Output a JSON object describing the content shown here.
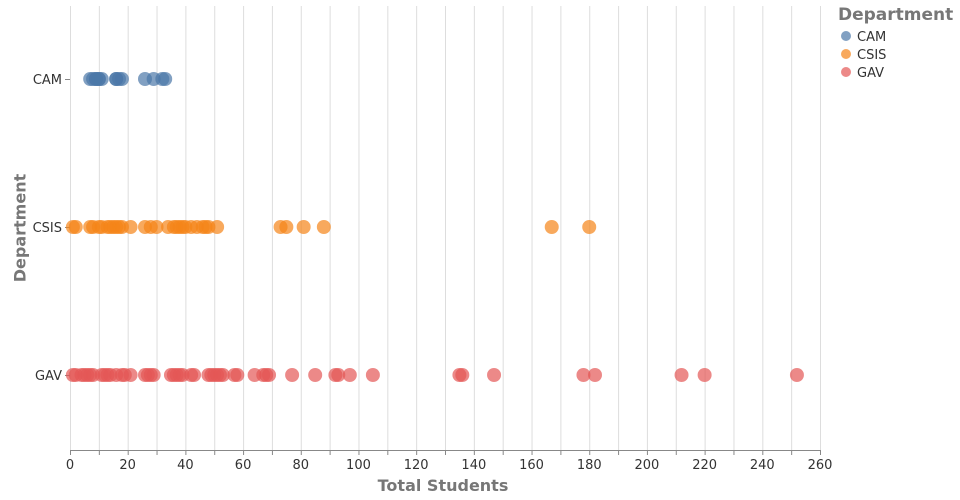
{
  "chart_data": {
    "type": "scatter",
    "xlabel": "Total Students",
    "ylabel": "Department",
    "xlim": [
      0,
      260
    ],
    "x_ticks": [
      0,
      20,
      40,
      60,
      80,
      100,
      120,
      140,
      160,
      180,
      200,
      220,
      240,
      260
    ],
    "categories": [
      "CAM",
      "CSIS",
      "GAV"
    ],
    "grid": true,
    "legend": {
      "title": "Department",
      "position": "top-right"
    },
    "series": [
      {
        "name": "CAM",
        "color": "#4c78a8",
        "x": [
          7,
          8,
          9,
          9,
          10,
          10,
          11,
          16,
          16,
          17,
          18,
          26,
          29,
          32,
          33
        ]
      },
      {
        "name": "CSIS",
        "color": "#f58518",
        "x": [
          1,
          2,
          7,
          8,
          10,
          11,
          13,
          14,
          15,
          16,
          17,
          18,
          21,
          26,
          28,
          30,
          34,
          36,
          37,
          38,
          39,
          40,
          42,
          44,
          46,
          47,
          48,
          51,
          73,
          75,
          81,
          88,
          167,
          180
        ]
      },
      {
        "name": "GAV",
        "color": "#e45756",
        "x": [
          1,
          2,
          4,
          5,
          6,
          7,
          8,
          11,
          12,
          13,
          14,
          16,
          18,
          19,
          21,
          26,
          27,
          28,
          29,
          35,
          36,
          37,
          38,
          39,
          42,
          43,
          48,
          49,
          50,
          51,
          52,
          53,
          57,
          58,
          64,
          67,
          68,
          69,
          77,
          85,
          92,
          93,
          97,
          105,
          135,
          136,
          147,
          178,
          182,
          212,
          220,
          252
        ]
      }
    ]
  }
}
